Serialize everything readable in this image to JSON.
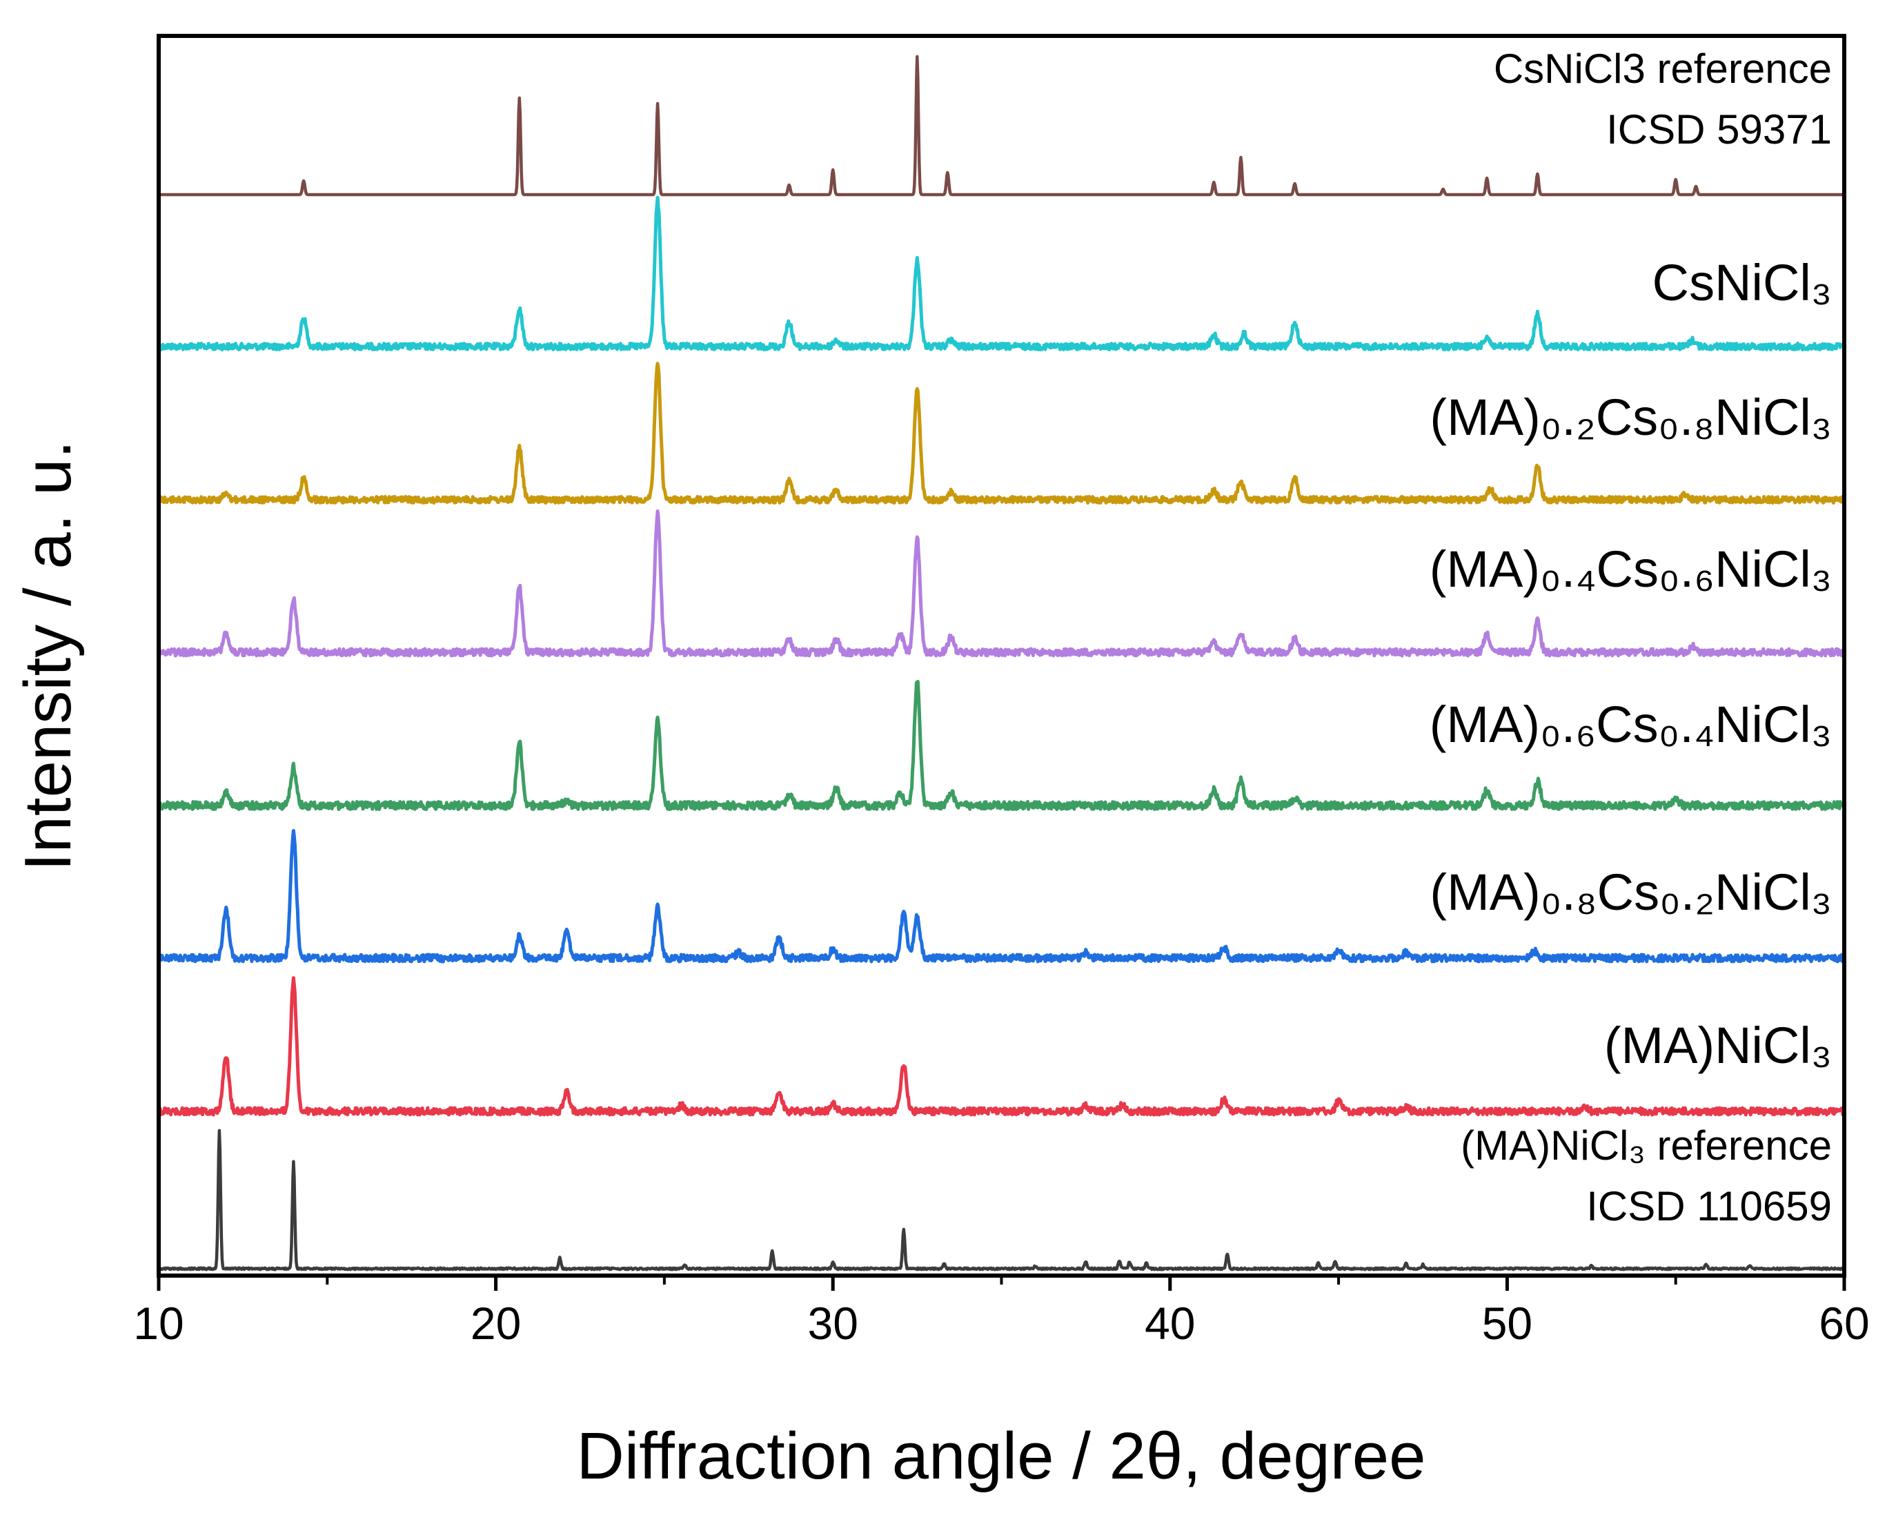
{
  "chart_data": {
    "type": "line",
    "title": "",
    "xlabel": "Diffraction angle / 2θ, degree",
    "ylabel": "Intensity / a. u.",
    "xlim": [
      10,
      60
    ],
    "xticks": [
      "10",
      "20",
      "30",
      "40",
      "50",
      "60"
    ],
    "yticks": [],
    "grid": false,
    "style": "stacked, vertically offset",
    "series": [
      {
        "name": "CsNiCl3 reference ICSD 59371",
        "label": "CsNiCl3 reference",
        "label_line2": "ICSD 59371",
        "kind": "reference",
        "color": "#7a4a46",
        "peaks": [
          [
            14.3,
            0.1
          ],
          [
            20.7,
            0.7
          ],
          [
            24.8,
            0.66
          ],
          [
            28.7,
            0.07
          ],
          [
            30.0,
            0.18
          ],
          [
            32.5,
            1.0
          ],
          [
            33.4,
            0.16
          ],
          [
            41.3,
            0.09
          ],
          [
            42.1,
            0.27
          ],
          [
            43.7,
            0.08
          ],
          [
            48.1,
            0.04
          ],
          [
            49.4,
            0.12
          ],
          [
            50.9,
            0.15
          ],
          [
            55.0,
            0.11
          ],
          [
            55.6,
            0.06
          ]
        ]
      },
      {
        "name": "CsNiCl3",
        "label": "CsNiCl₃",
        "kind": "measured",
        "color": "#22c6cf",
        "peaks": [
          [
            14.3,
            0.17
          ],
          [
            20.7,
            0.23
          ],
          [
            24.8,
            0.9
          ],
          [
            28.7,
            0.15
          ],
          [
            30.1,
            0.04
          ],
          [
            32.5,
            0.54
          ],
          [
            33.5,
            0.04
          ],
          [
            41.3,
            0.07
          ],
          [
            42.2,
            0.08
          ],
          [
            43.7,
            0.15
          ],
          [
            49.4,
            0.06
          ],
          [
            50.9,
            0.2
          ],
          [
            55.5,
            0.04
          ]
        ]
      },
      {
        "name": "(MA)0.2Cs0.8NiCl3",
        "label": "(MA)₀.₂Cs₀.₈NiCl₃",
        "kind": "measured",
        "color": "#c9990c",
        "peaks": [
          [
            12.0,
            0.04
          ],
          [
            14.3,
            0.14
          ],
          [
            20.7,
            0.34
          ],
          [
            24.8,
            0.9
          ],
          [
            28.7,
            0.12
          ],
          [
            30.1,
            0.06
          ],
          [
            32.5,
            0.74
          ],
          [
            33.5,
            0.05
          ],
          [
            41.3,
            0.06
          ],
          [
            42.1,
            0.12
          ],
          [
            43.7,
            0.14
          ],
          [
            49.5,
            0.07
          ],
          [
            50.9,
            0.22
          ],
          [
            55.3,
            0.04
          ]
        ]
      },
      {
        "name": "(MA)0.4Cs0.6NiCl3",
        "label": "(MA)₀.₄Cs₀.₆NiCl₃",
        "kind": "measured",
        "color": "#b27ee0",
        "peaks": [
          [
            12.0,
            0.12
          ],
          [
            14.0,
            0.34
          ],
          [
            20.7,
            0.42
          ],
          [
            24.8,
            0.9
          ],
          [
            28.7,
            0.08
          ],
          [
            30.1,
            0.08
          ],
          [
            32.0,
            0.12
          ],
          [
            32.5,
            0.74
          ],
          [
            33.5,
            0.1
          ],
          [
            41.3,
            0.06
          ],
          [
            42.1,
            0.13
          ],
          [
            43.7,
            0.09
          ],
          [
            49.4,
            0.12
          ],
          [
            50.9,
            0.2
          ],
          [
            55.5,
            0.04
          ]
        ]
      },
      {
        "name": "(MA)0.6Cs0.4NiCl3",
        "label": "(MA)₀.₆Cs₀.₄NiCl₃",
        "kind": "measured",
        "color": "#3c9e62",
        "peaks": [
          [
            12.0,
            0.1
          ],
          [
            14.0,
            0.28
          ],
          [
            20.7,
            0.46
          ],
          [
            22.1,
            0.04
          ],
          [
            24.8,
            0.62
          ],
          [
            28.7,
            0.08
          ],
          [
            30.1,
            0.12
          ],
          [
            32.0,
            0.1
          ],
          [
            32.5,
            0.9
          ],
          [
            33.5,
            0.1
          ],
          [
            41.3,
            0.11
          ],
          [
            42.1,
            0.18
          ],
          [
            43.7,
            0.05
          ],
          [
            49.4,
            0.11
          ],
          [
            50.9,
            0.18
          ],
          [
            55.0,
            0.06
          ]
        ]
      },
      {
        "name": "(MA)0.8Cs0.2NiCl3",
        "label": "(MA)₀.₈Cs₀.₂NiCl₃",
        "kind": "measured",
        "color": "#1f6fe0",
        "peaks": [
          [
            12.0,
            0.35
          ],
          [
            14.0,
            0.9
          ],
          [
            20.7,
            0.16
          ],
          [
            22.1,
            0.19
          ],
          [
            24.8,
            0.37
          ],
          [
            27.2,
            0.04
          ],
          [
            28.4,
            0.15
          ],
          [
            30.0,
            0.06
          ],
          [
            32.1,
            0.33
          ],
          [
            32.5,
            0.3
          ],
          [
            37.5,
            0.04
          ],
          [
            41.6,
            0.08
          ],
          [
            45.0,
            0.07
          ],
          [
            47.0,
            0.04
          ],
          [
            50.8,
            0.05
          ]
        ]
      },
      {
        "name": "(MA)NiCl3",
        "label": "(MA)NiCl₃",
        "kind": "measured",
        "color": "#e8384a",
        "peaks": [
          [
            12.0,
            0.38
          ],
          [
            14.0,
            0.9
          ],
          [
            22.1,
            0.13
          ],
          [
            25.5,
            0.04
          ],
          [
            28.4,
            0.14
          ],
          [
            30.0,
            0.05
          ],
          [
            32.1,
            0.32
          ],
          [
            37.5,
            0.04
          ],
          [
            38.6,
            0.05
          ],
          [
            41.6,
            0.08
          ],
          [
            45.0,
            0.07
          ],
          [
            47.0,
            0.03
          ],
          [
            52.3,
            0.03
          ]
        ]
      },
      {
        "name": "(MA)NiCl3 reference ICSD 110659",
        "label": "(MA)NiCl₃ reference",
        "label_line2": "ICSD 110659",
        "kind": "reference",
        "color": "#3c3c3c",
        "peaks": [
          [
            11.8,
            1.0
          ],
          [
            14.0,
            0.78
          ],
          [
            21.9,
            0.08
          ],
          [
            25.6,
            0.03
          ],
          [
            28.2,
            0.13
          ],
          [
            30.0,
            0.05
          ],
          [
            32.1,
            0.28
          ],
          [
            33.3,
            0.04
          ],
          [
            36.0,
            0.02
          ],
          [
            37.5,
            0.05
          ],
          [
            38.5,
            0.06
          ],
          [
            38.8,
            0.05
          ],
          [
            39.3,
            0.04
          ],
          [
            41.7,
            0.11
          ],
          [
            44.4,
            0.04
          ],
          [
            44.9,
            0.05
          ],
          [
            47.0,
            0.04
          ],
          [
            47.5,
            0.03
          ],
          [
            52.5,
            0.02
          ],
          [
            55.9,
            0.03
          ],
          [
            57.2,
            0.02
          ]
        ]
      }
    ]
  }
}
